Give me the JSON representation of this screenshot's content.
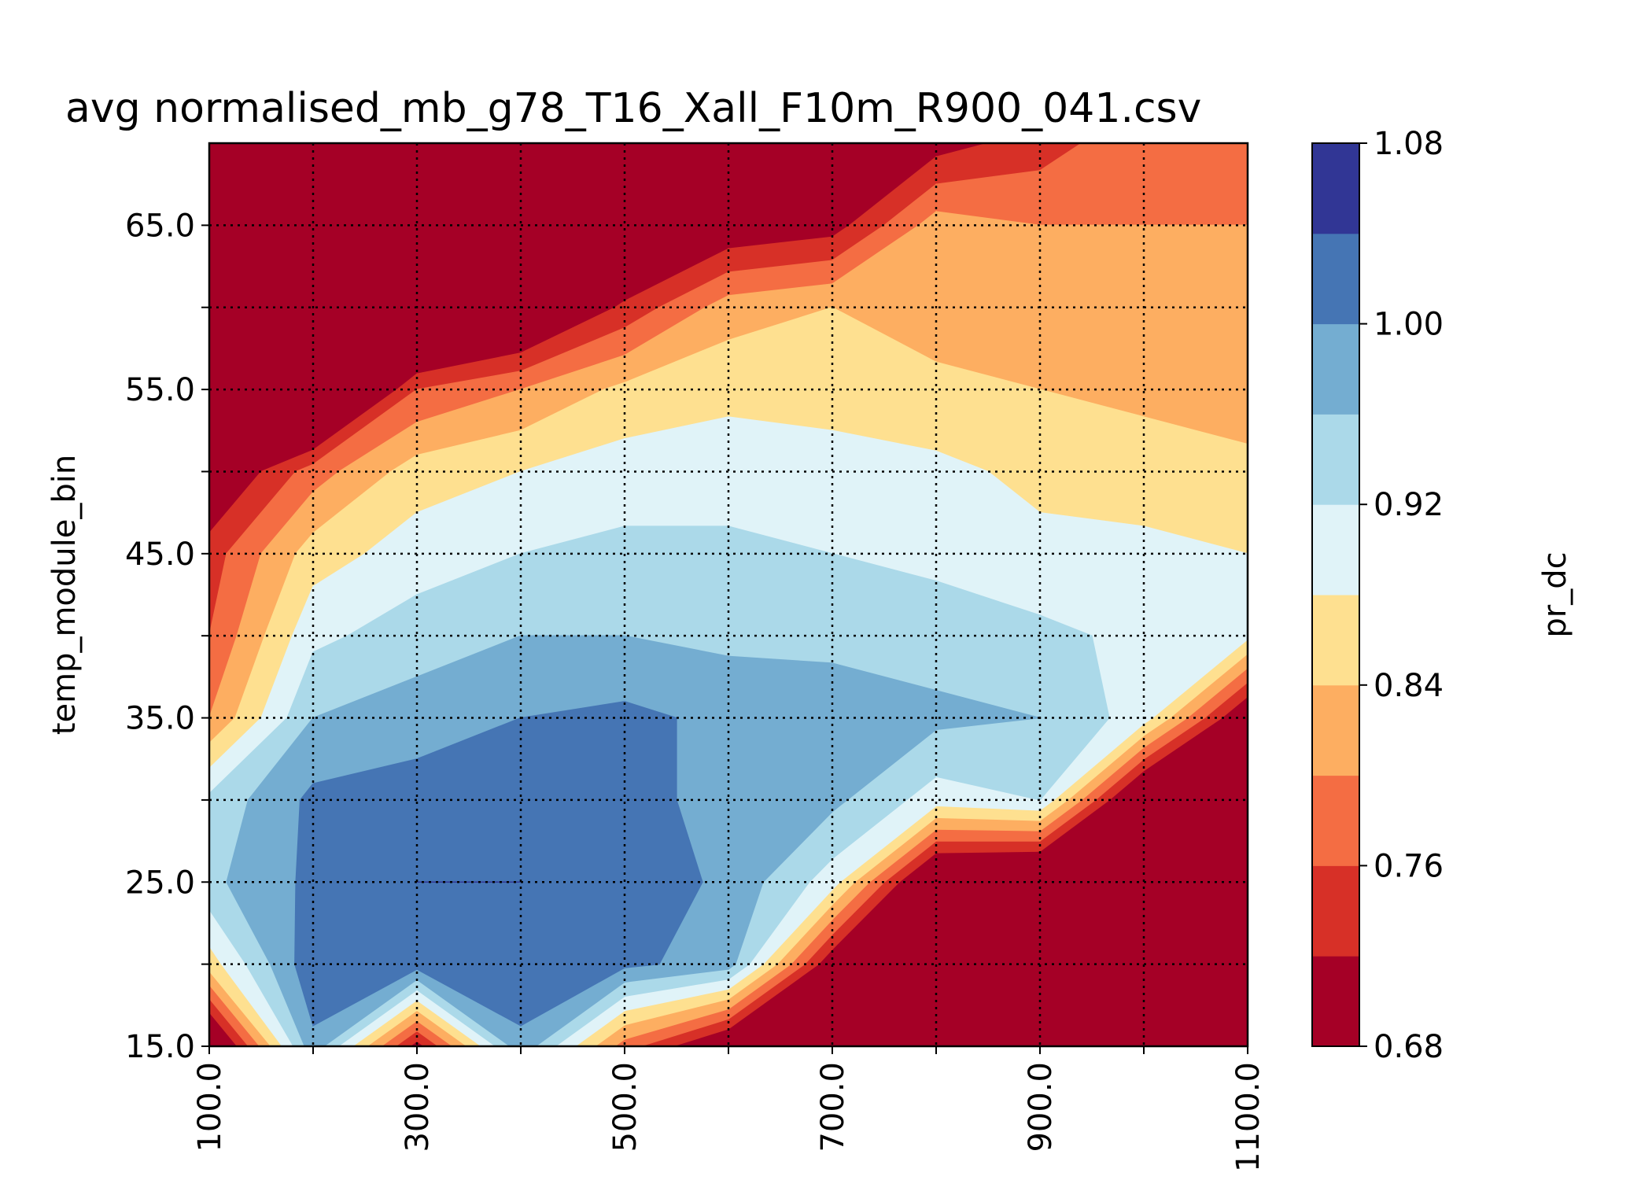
{
  "chart_data": {
    "type": "heatmap",
    "title": "avg normalised_mb_g78_T16_Xall_F10m_R900_041.csv",
    "xlabel": "",
    "ylabel": "temp_module_bin",
    "colorbar_label": "pr_dc",
    "x": [
      100.0,
      200.0,
      300.0,
      400.0,
      500.0,
      600.0,
      700.0,
      800.0,
      900.0,
      1000.0,
      1100.0
    ],
    "y": [
      15.0,
      20.0,
      25.0,
      30.0,
      35.0,
      40.0,
      45.0,
      50.0,
      55.0,
      60.0,
      65.0,
      70.0
    ],
    "xlim": [
      100.0,
      1100.0
    ],
    "ylim": [
      15.0,
      70.0
    ],
    "x_tick_labels": [
      "100.0",
      "300.0",
      "500.0",
      "700.0",
      "900.0",
      "1100.0"
    ],
    "x_tick_values": [
      100,
      300,
      500,
      700,
      900,
      1100
    ],
    "x_minor_ticks": [
      200,
      400,
      600,
      800,
      1000
    ],
    "y_tick_labels": [
      "15.0",
      "25.0",
      "35.0",
      "45.0",
      "55.0",
      "65.0"
    ],
    "y_tick_values": [
      15,
      25,
      35,
      45,
      55,
      65
    ],
    "y_minor_ticks": [
      20,
      30,
      40,
      50,
      60
    ],
    "grid": true,
    "colorbar_ticks": [
      "0.68",
      "0.76",
      "0.84",
      "0.92",
      "1.00",
      "1.08"
    ],
    "colorbar_tick_values": [
      0.68,
      0.76,
      0.84,
      0.92,
      1.0,
      1.08
    ],
    "levels": [
      0.68,
      0.72,
      0.76,
      0.8,
      0.84,
      0.88,
      0.92,
      0.96,
      1.0,
      1.04,
      1.08
    ],
    "colors": [
      "#a50026",
      "#d73027",
      "#f46d43",
      "#fdae61",
      "#fee090",
      "#e0f3f8",
      "#abd9e9",
      "#74add1",
      "#4575b4",
      "#313695"
    ],
    "z": [
      [
        0.62,
        0.99,
        0.7,
        0.99,
        0.78,
        0.65,
        0.6,
        0.5,
        0.5,
        0.5,
        0.5
      ],
      [
        0.86,
        1.03,
        1.02,
        1.03,
        1.01,
        0.98,
        0.68,
        0.55,
        0.5,
        0.5,
        0.5
      ],
      [
        0.95,
        1.01,
        1.04,
        1.04,
        1.03,
        0.99,
        0.9,
        0.62,
        0.6,
        0.5,
        0.5
      ],
      [
        0.93,
        1.01,
        1.02,
        1.02,
        1.01,
        0.99,
        0.97,
        0.9,
        0.92,
        0.62,
        0.55
      ],
      [
        0.8,
        0.96,
        0.98,
        1.0,
        1.01,
        0.99,
        0.98,
        0.97,
        0.96,
        0.9,
        0.66
      ],
      [
        0.76,
        0.91,
        0.94,
        0.96,
        0.96,
        0.95,
        0.95,
        0.94,
        0.93,
        0.91,
        0.89
      ],
      [
        0.74,
        0.86,
        0.9,
        0.92,
        0.93,
        0.93,
        0.92,
        0.91,
        0.89,
        0.89,
        0.88
      ],
      [
        0.66,
        0.78,
        0.86,
        0.88,
        0.9,
        0.9,
        0.9,
        0.89,
        0.87,
        0.86,
        0.85
      ],
      [
        0.5,
        0.55,
        0.76,
        0.8,
        0.85,
        0.87,
        0.86,
        0.85,
        0.84,
        0.83,
        0.82
      ],
      [
        0.4,
        0.45,
        0.55,
        0.62,
        0.73,
        0.82,
        0.84,
        0.82,
        0.81,
        0.8,
        0.8
      ],
      [
        0.35,
        0.38,
        0.45,
        0.5,
        0.6,
        0.68,
        0.7,
        0.82,
        0.8,
        0.8,
        0.8
      ],
      [
        0.3,
        0.32,
        0.38,
        0.42,
        0.5,
        0.55,
        0.6,
        0.7,
        0.74,
        0.79,
        0.77
      ]
    ]
  }
}
